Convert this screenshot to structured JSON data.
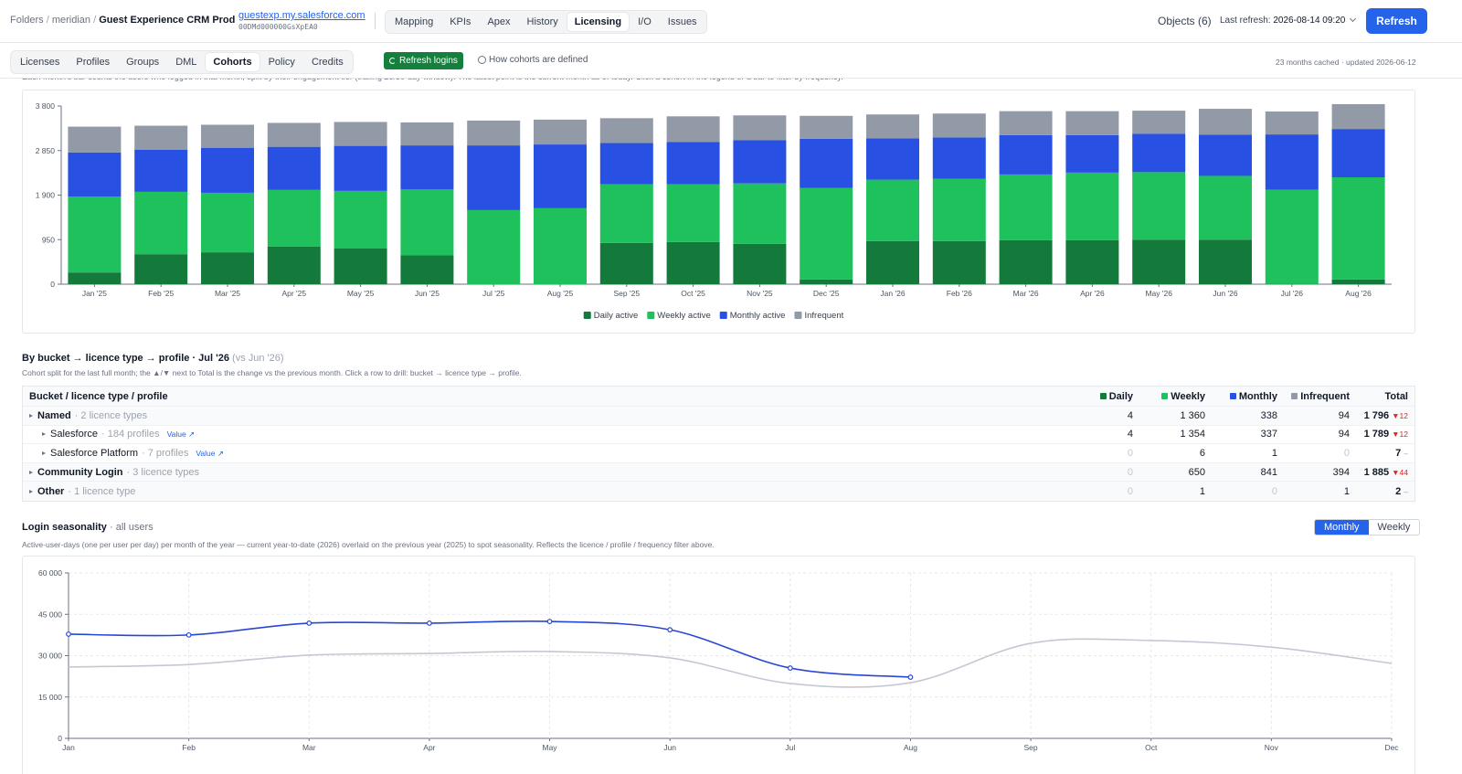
{
  "header": {
    "breadcrumb": [
      "Folders",
      "meridian",
      "Guest Experience CRM Prod"
    ],
    "url": "guestexp.my.salesforce.com",
    "org_id": "00DMd000000GsXpEA0",
    "nav": [
      "Mapping",
      "KPIs",
      "Apex",
      "History",
      "Licensing",
      "I/O",
      "Issues"
    ],
    "nav_active": 4,
    "objects": "Objects (6)",
    "last_refresh_label": "Last refresh:",
    "last_refresh": "2026-08-14 09:20",
    "refresh": "Refresh"
  },
  "subnav": {
    "tabs": [
      "Licenses",
      "Profiles",
      "Groups",
      "DML",
      "Cohorts",
      "Policy",
      "Credits"
    ],
    "active": 4,
    "refresh_logins": "Refresh logins",
    "help": "How cohorts are defined",
    "cache": "23 months cached · updated 2026-06-12"
  },
  "cohorts": {
    "description": "Each month's bar counts the users who logged in that month, split by their engagement tier (trailing 28/30-day window). The latest point is the current month as of today. Click a cohort in the legend or a bar to filter by frequency."
  },
  "breakdown": {
    "title": "By bucket → licence type → profile · Jul '26",
    "compare": "(vs Jun '26)",
    "description": "Cohort split for the last full month; the ▲/▼ next to Total is the change vs the previous month. Click a row to drill: bucket → licence type → profile.",
    "columns": [
      "Bucket / licence type / profile",
      "Daily",
      "Weekly",
      "Monthly",
      "Infrequent",
      "Total"
    ],
    "rows": [
      {
        "label": "Named",
        "sub": "· 2 licence types",
        "level": 0,
        "cells": [
          "4",
          "1 360",
          "338",
          "94",
          "1 796"
        ],
        "delta": "▼12",
        "delta_color": "#dc2626"
      },
      {
        "label": "Salesforce",
        "sub": "· 184 profiles",
        "link": "Value ↗",
        "level": 1,
        "cells": [
          "4",
          "1 354",
          "337",
          "94",
          "1 789"
        ],
        "delta": "▼12",
        "delta_color": "#dc2626"
      },
      {
        "label": "Salesforce Platform",
        "sub": "· 7 profiles",
        "link": "Value ↗",
        "level": 1,
        "cells": [
          "0",
          "6",
          "1",
          "0",
          "7"
        ],
        "delta": "–",
        "delta_color": "#9ca3af"
      },
      {
        "label": "Community Login",
        "sub": "· 3 licence types",
        "level": 0,
        "cells": [
          "0",
          "650",
          "841",
          "394",
          "1 885"
        ],
        "delta": "▼44",
        "delta_color": "#dc2626"
      },
      {
        "label": "Other",
        "sub": "· 1 licence type",
        "level": 0,
        "cells": [
          "0",
          "1",
          "0",
          "1",
          "2"
        ],
        "delta": "–",
        "delta_color": "#9ca3af"
      }
    ]
  },
  "seasonality": {
    "title": "Login seasonality",
    "subtitle": "· all users",
    "description": "Active-user-days (one per user per day) per month of the year — current year-to-date (2026) overlaid on the previous year (2025) to spot seasonality. Reflects the licence / profile / frequency filter above.",
    "toggle": [
      "Monthly",
      "Weekly"
    ],
    "toggle_active": 0
  },
  "chart_data": [
    {
      "type": "bar",
      "stacked": true,
      "legend": "bottom",
      "grid": false,
      "categories": [
        "Jan '25",
        "Feb '25",
        "Mar '25",
        "Apr '25",
        "May '25",
        "Jun '25",
        "Jul '25",
        "Aug '25",
        "Sep '25",
        "Oct '25",
        "Nov '25",
        "Dec '25",
        "Jan '26",
        "Feb '26",
        "Mar '26",
        "Apr '26",
        "May '26",
        "Jun '26",
        "Jul '26",
        "Aug '26"
      ],
      "series": [
        {
          "name": "Daily active",
          "color": "#137a3b",
          "values": [
            250,
            640,
            680,
            800,
            760,
            620,
            0,
            0,
            880,
            900,
            860,
            100,
            920,
            920,
            940,
            940,
            950,
            950,
            4,
            100
          ]
        },
        {
          "name": "Weekly active",
          "color": "#1ec15b",
          "values": [
            1620,
            1330,
            1270,
            1210,
            1230,
            1400,
            1580,
            1620,
            1250,
            1230,
            1290,
            1950,
            1310,
            1330,
            1400,
            1440,
            1440,
            1360,
            2011,
            2180
          ]
        },
        {
          "name": "Monthly active",
          "color": "#2850e2",
          "values": [
            940,
            900,
            960,
            920,
            960,
            940,
            1380,
            1360,
            880,
            900,
            920,
            1050,
            880,
            880,
            840,
            800,
            820,
            880,
            1179,
            1030
          ]
        },
        {
          "name": "Infrequent",
          "color": "#939aa7",
          "values": [
            550,
            510,
            490,
            510,
            510,
            490,
            530,
            530,
            530,
            550,
            530,
            490,
            510,
            510,
            510,
            510,
            490,
            550,
            489,
            530
          ]
        }
      ],
      "ylim": [
        0,
        3800
      ],
      "yticks": [
        0,
        950,
        {
          "value": 1900,
          "label": "1 900"
        },
        {
          "value": 2850,
          "label": "2 850"
        },
        {
          "value": 3800,
          "label": "3 800"
        }
      ]
    },
    {
      "type": "line",
      "grid": true,
      "categories": [
        "Jan",
        "Feb",
        "Mar",
        "Apr",
        "May",
        "Jun",
        "Jul",
        "Aug",
        "Sep",
        "Oct",
        "Nov",
        "Dec"
      ],
      "series": [
        {
          "color": "#2846d6",
          "markers": true,
          "values": [
            37800,
            37500,
            41800,
            41800,
            42400,
            39400,
            25500,
            22200,
            null,
            null,
            null,
            null
          ]
        },
        {
          "color": "#c3c8d3",
          "markers": false,
          "values": [
            25900,
            26800,
            30200,
            30800,
            31500,
            29200,
            19900,
            20200,
            34500,
            35500,
            33100,
            27200
          ]
        }
      ],
      "ylim": [
        0,
        60000
      ],
      "yticks": [
        0,
        {
          "value": 15000,
          "label": "15 000"
        },
        {
          "value": 30000,
          "label": "30 000"
        },
        {
          "value": 45000,
          "label": "45 000"
        },
        {
          "value": 60000,
          "label": "60 000"
        }
      ]
    }
  ]
}
